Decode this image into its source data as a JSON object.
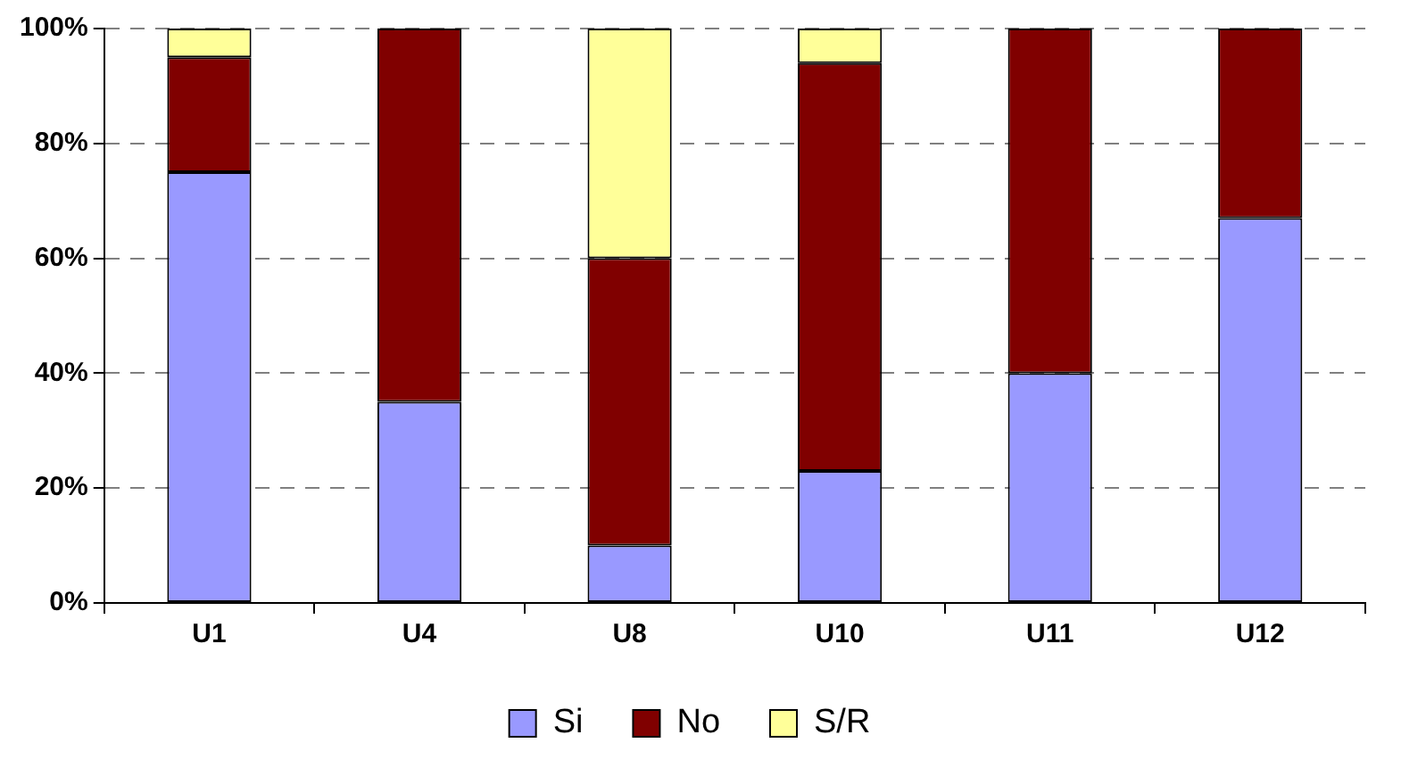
{
  "chart_data": {
    "type": "bar",
    "stacked": true,
    "categories": [
      "U1",
      "U4",
      "U8",
      "U10",
      "U11",
      "U12"
    ],
    "series": [
      {
        "name": "Si",
        "color": "#9999ff",
        "values": [
          75,
          35,
          10,
          23,
          40,
          67
        ]
      },
      {
        "name": "No",
        "color": "#800000",
        "values": [
          20,
          65,
          50,
          71,
          60,
          33
        ]
      },
      {
        "name": "S/R",
        "color": "#ffff99",
        "values": [
          5,
          null,
          40,
          6,
          null,
          null
        ]
      }
    ],
    "ylim": [
      0,
      100
    ],
    "yticks": [
      {
        "value": 0,
        "label": "0%"
      },
      {
        "value": 20,
        "label": "20%"
      },
      {
        "value": 40,
        "label": "40%"
      },
      {
        "value": 60,
        "label": "60%"
      },
      {
        "value": 80,
        "label": "80%"
      },
      {
        "value": 100,
        "label": "100%"
      }
    ],
    "grid": "y",
    "legend": "bottom"
  }
}
